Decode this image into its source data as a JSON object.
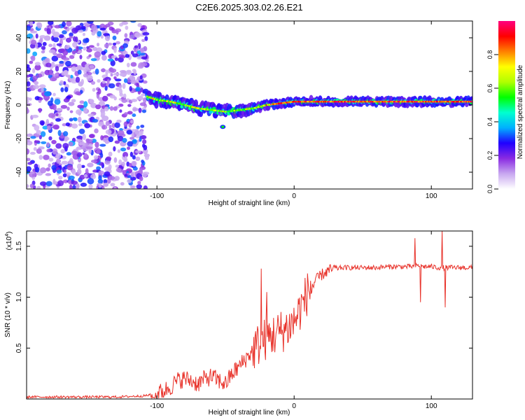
{
  "figure": {
    "title": "C2E6.2025.303.02.26.E21"
  },
  "chart_data": [
    {
      "type": "heatmap",
      "xlabel": "Height of straight line (km)",
      "ylabel": "Frequency (Hz)",
      "xlim": [
        -195,
        130
      ],
      "ylim": [
        -50,
        50
      ],
      "xticks": [
        -100,
        0,
        100
      ],
      "xtick_labels": [
        "-100",
        "0",
        "100"
      ],
      "yticks": [
        -40,
        -20,
        0,
        20,
        40
      ],
      "ytick_labels": [
        "-40",
        "-20",
        "0",
        "20",
        "40"
      ],
      "grid": false,
      "noise_region_km": [
        -195,
        -107
      ],
      "ridge": {
        "x": [
          -107,
          -100,
          -90,
          -80,
          -70,
          -60,
          -50,
          -40,
          -30,
          -20,
          -10,
          0,
          20,
          40,
          60,
          80,
          100,
          130
        ],
        "y": [
          5,
          3,
          2,
          0,
          -2,
          -3,
          -4,
          -3,
          -2,
          0,
          1,
          2,
          2,
          2,
          2,
          2,
          2,
          2
        ]
      },
      "colorbar": {
        "label": "Normalized spectral amplitude",
        "range": [
          0,
          1
        ],
        "ticks": [
          0.0,
          0.2,
          0.4,
          0.6,
          0.8
        ],
        "tick_labels": [
          "0.0",
          "0.2",
          "0.4",
          "0.6",
          "0.8"
        ],
        "colormap": [
          "#ffffff",
          "#c8a8f0",
          "#8a2be2",
          "#2000ff",
          "#00b0ff",
          "#00ffd0",
          "#00ff00",
          "#b0ff00",
          "#ffff00",
          "#ff8000",
          "#ff0000",
          "#ff0080"
        ]
      }
    },
    {
      "type": "line",
      "xlabel": "Height of straight line (km)",
      "ylabel": "SNR (10 * v/v)",
      "y_multiplier_label": "(x10",
      "y_multiplier_exp": "4",
      "y_multiplier_close": ")",
      "xlim": [
        -195,
        130
      ],
      "ylim": [
        0,
        1.65
      ],
      "xticks": [
        -100,
        0,
        100
      ],
      "xtick_labels": [
        "-100",
        "0",
        "100"
      ],
      "yticks": [
        0.5,
        1.0,
        1.5
      ],
      "ytick_labels": [
        "0.5",
        "1.0",
        "1.5"
      ],
      "grid": false,
      "series": [
        {
          "name": "SNR",
          "color": "#e8322a",
          "x": [
            -195,
            -170,
            -150,
            -130,
            -110,
            -100,
            -95,
            -90,
            -85,
            -80,
            -75,
            -70,
            -65,
            -60,
            -55,
            -50,
            -45,
            -40,
            -35,
            -30,
            -25,
            -20,
            -15,
            -10,
            -5,
            0,
            5,
            10,
            15,
            20,
            25,
            30,
            35,
            40,
            50,
            60,
            70,
            80,
            85,
            90,
            95,
            100,
            105,
            110,
            115,
            120,
            130
          ],
          "y": [
            0.02,
            0.02,
            0.02,
            0.02,
            0.03,
            0.05,
            0.08,
            0.12,
            0.18,
            0.2,
            0.18,
            0.15,
            0.2,
            0.22,
            0.18,
            0.15,
            0.25,
            0.32,
            0.4,
            0.48,
            0.55,
            0.6,
            0.63,
            0.66,
            0.7,
            0.76,
            0.9,
            1.05,
            1.15,
            1.22,
            1.26,
            1.28,
            1.29,
            1.29,
            1.29,
            1.29,
            1.3,
            1.3,
            1.3,
            1.31,
            1.3,
            1.3,
            1.29,
            1.29,
            1.29,
            1.29,
            1.29
          ],
          "spikes": [
            {
              "x": -24,
              "y": 1.28
            },
            {
              "x": -20,
              "y": 1.05
            },
            {
              "x": 88,
              "y": 1.58
            },
            {
              "x": 92,
              "y": 0.95
            },
            {
              "x": 108,
              "y": 1.65
            },
            {
              "x": 110,
              "y": 0.9
            }
          ]
        }
      ]
    }
  ]
}
